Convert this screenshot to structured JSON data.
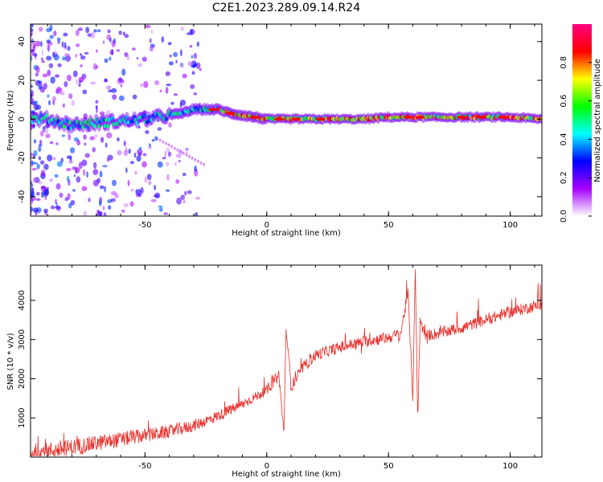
{
  "figure": {
    "title": "C2E1.2023.289.09.14.R24"
  },
  "chart_data": [
    {
      "type": "heatmap",
      "xlabel": "Height of straight line (km)",
      "ylabel": "Frequency (Hz)",
      "xlim": [
        -97,
        113
      ],
      "ylim": [
        -50,
        49
      ],
      "xticks": [
        -50,
        0,
        50,
        100
      ],
      "yticks": [
        -40,
        -20,
        0,
        20,
        40
      ],
      "colorbar": {
        "label": "Normalized spectral amplitude",
        "range": [
          0.0,
          1.0
        ],
        "ticks": [
          0.0,
          0.2,
          0.4,
          0.6,
          0.8
        ],
        "tick_labels": [
          "0.0",
          "0.2",
          "0.4",
          "0.6",
          "0.8"
        ],
        "colormap": [
          "#ffffff",
          "#a600ff",
          "#0000ff",
          "#00ffff",
          "#00ff00",
          "#ffff00",
          "#ff0000",
          "#ff0080"
        ]
      },
      "ridge": {
        "description_hidden": true,
        "x": [
          -97,
          -90,
          -80,
          -70,
          -60,
          -50,
          -45,
          -40,
          -35,
          -30,
          -25,
          -20,
          -15,
          -10,
          -5,
          0,
          10,
          20,
          30,
          40,
          50,
          60,
          70,
          80,
          90,
          100,
          113
        ],
        "y": [
          0,
          0,
          -3,
          -2,
          -1,
          0,
          1,
          2,
          3,
          5,
          5,
          5,
          3,
          2,
          1,
          0,
          0,
          0,
          0,
          0,
          1,
          1,
          1,
          1,
          1,
          1,
          0
        ]
      },
      "grid": false
    },
    {
      "type": "line",
      "xlabel": "Height of straight line (km)",
      "ylabel": "SNR (10 * v/v)",
      "xlim": [
        -97,
        113
      ],
      "ylim": [
        0,
        4900
      ],
      "xticks": [
        -50,
        0,
        50,
        100
      ],
      "yticks": [
        1000,
        2000,
        3000,
        4000
      ],
      "line_color": "#e8302c",
      "grid": false,
      "series": [
        {
          "x": [
            -97,
            -90,
            -80,
            -70,
            -60,
            -50,
            -40,
            -30,
            -20,
            -10,
            0,
            5,
            7,
            8,
            10,
            15,
            20,
            30,
            40,
            50,
            55,
            58,
            60,
            61,
            62,
            63,
            65,
            70,
            80,
            90,
            100,
            113
          ],
          "values": [
            100,
            150,
            250,
            350,
            450,
            550,
            650,
            800,
            1050,
            1350,
            1700,
            2100,
            600,
            3300,
            1800,
            2300,
            2600,
            2800,
            2950,
            3050,
            3150,
            4200,
            1500,
            4900,
            900,
            3500,
            3100,
            3150,
            3300,
            3500,
            3700,
            3900
          ]
        }
      ]
    }
  ]
}
